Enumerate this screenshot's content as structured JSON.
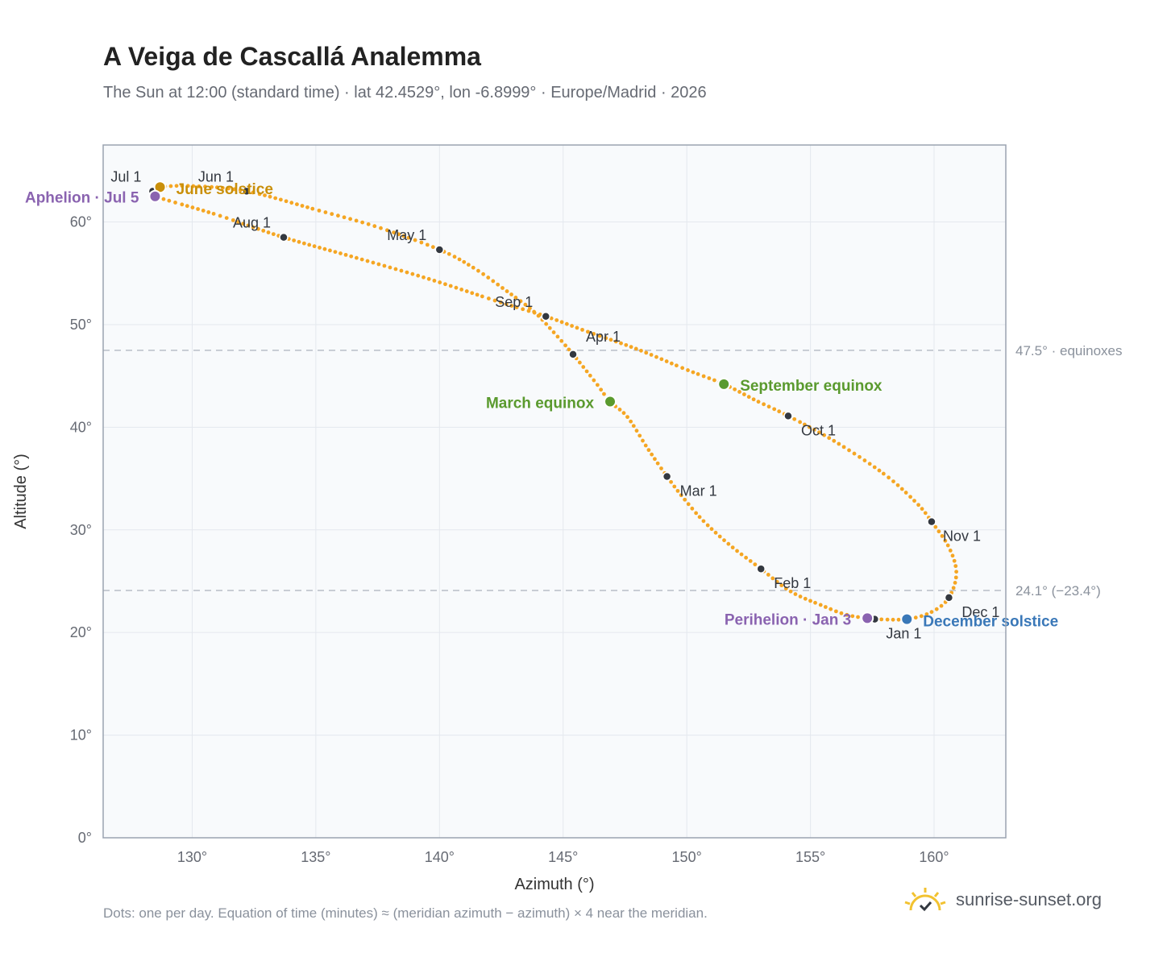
{
  "title": "A Veiga de Cascallá Analemma",
  "subtitle": "The Sun at 12:00 (standard time) · lat 42.4529°, lon -6.8999° · Europe/Madrid · 2026",
  "footnote": "Dots: one per day. Equation of time (minutes) ≈ (meridian azimuth − azimuth) × 4 near the meridian.",
  "brand": "sunrise-sunset.org",
  "colors": {
    "curve": "#f5a623",
    "month_marker": "#333840",
    "solstice_june": "#c98f0a",
    "solstice_december": "#3a78b8",
    "equinox": "#5a9a2e",
    "apsis": "#8a63b0",
    "reference_line": "#b8bec7"
  },
  "chart_data": {
    "type": "scatter",
    "title": "A Veiga de Cascallá Analemma",
    "xlabel": "Azimuth (°)",
    "ylabel": "Altitude (°)",
    "xlim": [
      126.4,
      162.9
    ],
    "ylim": [
      0,
      67.5
    ],
    "xticks": [
      130,
      135,
      140,
      145,
      150,
      155,
      160
    ],
    "xtick_labels": [
      "130°",
      "135°",
      "140°",
      "145°",
      "150°",
      "155°",
      "160°"
    ],
    "yticks": [
      0,
      10,
      20,
      30,
      40,
      50,
      60
    ],
    "ytick_labels": [
      "0°",
      "10°",
      "20°",
      "30°",
      "40°",
      "50°",
      "60°"
    ],
    "grid": true,
    "reference_lines": [
      {
        "y": 47.5,
        "label": "47.5° · equinoxes"
      },
      {
        "y": 24.1,
        "label": "24.1° (−23.4°)"
      }
    ],
    "month_markers": [
      {
        "label": "Jan 1",
        "x": 157.6,
        "y": 21.3
      },
      {
        "label": "Feb 1",
        "x": 153.0,
        "y": 26.2
      },
      {
        "label": "Mar 1",
        "x": 149.2,
        "y": 35.2
      },
      {
        "label": "Apr 1",
        "x": 145.4,
        "y": 47.1
      },
      {
        "label": "May 1",
        "x": 140.0,
        "y": 57.3
      },
      {
        "label": "Jun 1",
        "x": 132.2,
        "y": 63.0
      },
      {
        "label": "Jul 1",
        "x": 128.4,
        "y": 63.0
      },
      {
        "label": "Aug 1",
        "x": 133.7,
        "y": 58.5
      },
      {
        "label": "Sep 1",
        "x": 144.3,
        "y": 50.8
      },
      {
        "label": "Oct 1",
        "x": 154.1,
        "y": 41.1
      },
      {
        "label": "Nov 1",
        "x": 159.9,
        "y": 30.8
      },
      {
        "label": "Dec 1",
        "x": 160.6,
        "y": 23.4
      }
    ],
    "events": [
      {
        "label": "June solstice",
        "kind": "solstice_june",
        "x": 128.7,
        "y": 63.4
      },
      {
        "label": "December solstice",
        "kind": "solstice_december",
        "x": 158.9,
        "y": 21.3
      },
      {
        "label": "March equinox",
        "kind": "equinox",
        "x": 146.9,
        "y": 42.5
      },
      {
        "label": "September equinox",
        "kind": "equinox",
        "x": 151.5,
        "y": 44.2
      },
      {
        "label": "Aphelion · Jul 5",
        "kind": "apsis",
        "x": 128.5,
        "y": 62.5
      },
      {
        "label": "Perihelion · Jan 3",
        "kind": "apsis",
        "x": 157.3,
        "y": 21.4
      }
    ],
    "curve_waypoints": [
      {
        "x": 157.6,
        "y": 21.3
      },
      {
        "x": 156.5,
        "y": 21.7
      },
      {
        "x": 155.5,
        "y": 22.6
      },
      {
        "x": 154.2,
        "y": 24.0
      },
      {
        "x": 153.0,
        "y": 26.2
      },
      {
        "x": 151.8,
        "y": 28.4
      },
      {
        "x": 150.7,
        "y": 30.8
      },
      {
        "x": 149.9,
        "y": 33.0
      },
      {
        "x": 149.2,
        "y": 35.2
      },
      {
        "x": 148.4,
        "y": 38.0
      },
      {
        "x": 147.6,
        "y": 41.0
      },
      {
        "x": 146.9,
        "y": 42.5
      },
      {
        "x": 146.3,
        "y": 44.4
      },
      {
        "x": 145.4,
        "y": 47.1
      },
      {
        "x": 144.6,
        "y": 49.3
      },
      {
        "x": 143.8,
        "y": 51.3
      },
      {
        "x": 142.7,
        "y": 53.3
      },
      {
        "x": 141.4,
        "y": 55.5
      },
      {
        "x": 140.0,
        "y": 57.3
      },
      {
        "x": 137.5,
        "y": 59.5
      },
      {
        "x": 135.0,
        "y": 61.2
      },
      {
        "x": 132.2,
        "y": 63.0
      },
      {
        "x": 130.0,
        "y": 63.5
      },
      {
        "x": 128.7,
        "y": 63.4
      },
      {
        "x": 128.4,
        "y": 63.0
      },
      {
        "x": 128.5,
        "y": 62.5
      },
      {
        "x": 131.0,
        "y": 60.7
      },
      {
        "x": 133.7,
        "y": 58.5
      },
      {
        "x": 136.5,
        "y": 56.6
      },
      {
        "x": 139.5,
        "y": 54.5
      },
      {
        "x": 142.3,
        "y": 52.3
      },
      {
        "x": 144.3,
        "y": 50.8
      },
      {
        "x": 146.0,
        "y": 49.3
      },
      {
        "x": 148.0,
        "y": 47.6
      },
      {
        "x": 150.0,
        "y": 45.6
      },
      {
        "x": 151.5,
        "y": 44.2
      },
      {
        "x": 152.8,
        "y": 42.6
      },
      {
        "x": 154.1,
        "y": 41.1
      },
      {
        "x": 156.0,
        "y": 38.6
      },
      {
        "x": 158.0,
        "y": 35.4
      },
      {
        "x": 159.3,
        "y": 32.6
      },
      {
        "x": 159.9,
        "y": 30.8
      },
      {
        "x": 160.6,
        "y": 28.3
      },
      {
        "x": 160.9,
        "y": 25.8
      },
      {
        "x": 160.6,
        "y": 23.4
      },
      {
        "x": 159.9,
        "y": 22.0
      },
      {
        "x": 158.9,
        "y": 21.3
      },
      {
        "x": 157.6,
        "y": 21.3
      }
    ]
  }
}
